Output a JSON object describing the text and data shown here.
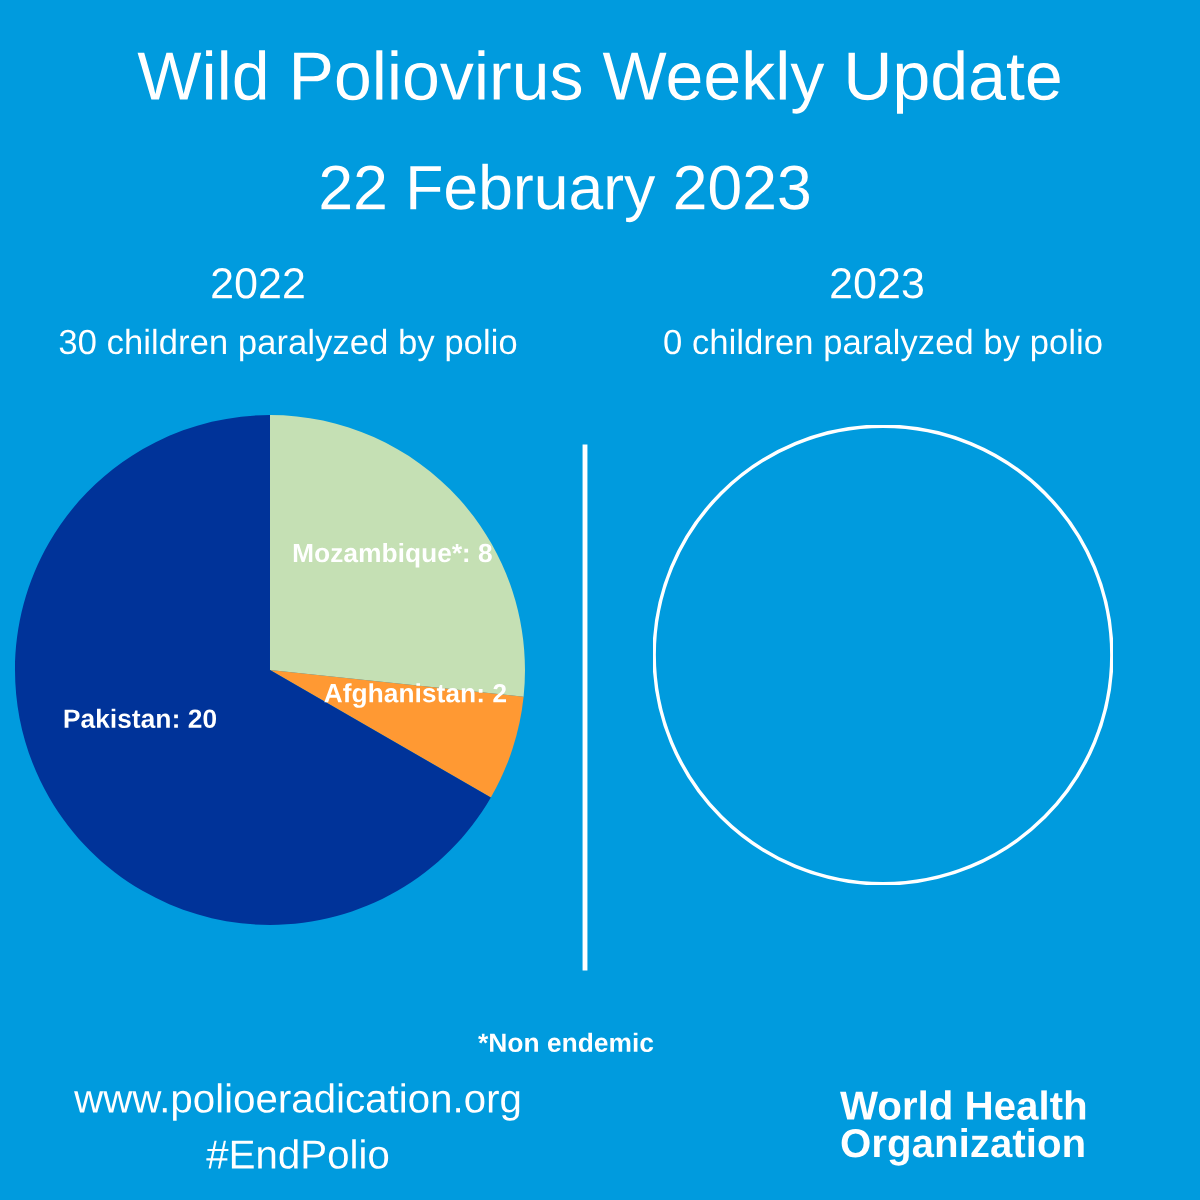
{
  "chart_data": [
    {
      "type": "other",
      "title": "Wild Poliovirus Weekly Update",
      "subtitle": "22 February 2023"
    },
    {
      "type": "pie",
      "title": "2022",
      "subtitle": "30 children paralyzed by polio",
      "categories": [
        "Mozambique*",
        "Afghanistan",
        "Pakistan"
      ],
      "values": [
        8,
        2,
        20
      ],
      "value_labels": [
        ": 8",
        ": 2",
        ": 20"
      ],
      "colors": [
        "#c5e0b4",
        "#ff9933",
        "#003399"
      ],
      "annotations": [
        "*Non endemic"
      ]
    },
    {
      "type": "other",
      "title": "2023",
      "subtitle": "0 children paralyzed by polio"
    },
    {
      "type": "other",
      "annotations": [
        "www.polioeradication.org",
        "#EndPolio",
        "World Health\nOrganization"
      ]
    }
  ]
}
